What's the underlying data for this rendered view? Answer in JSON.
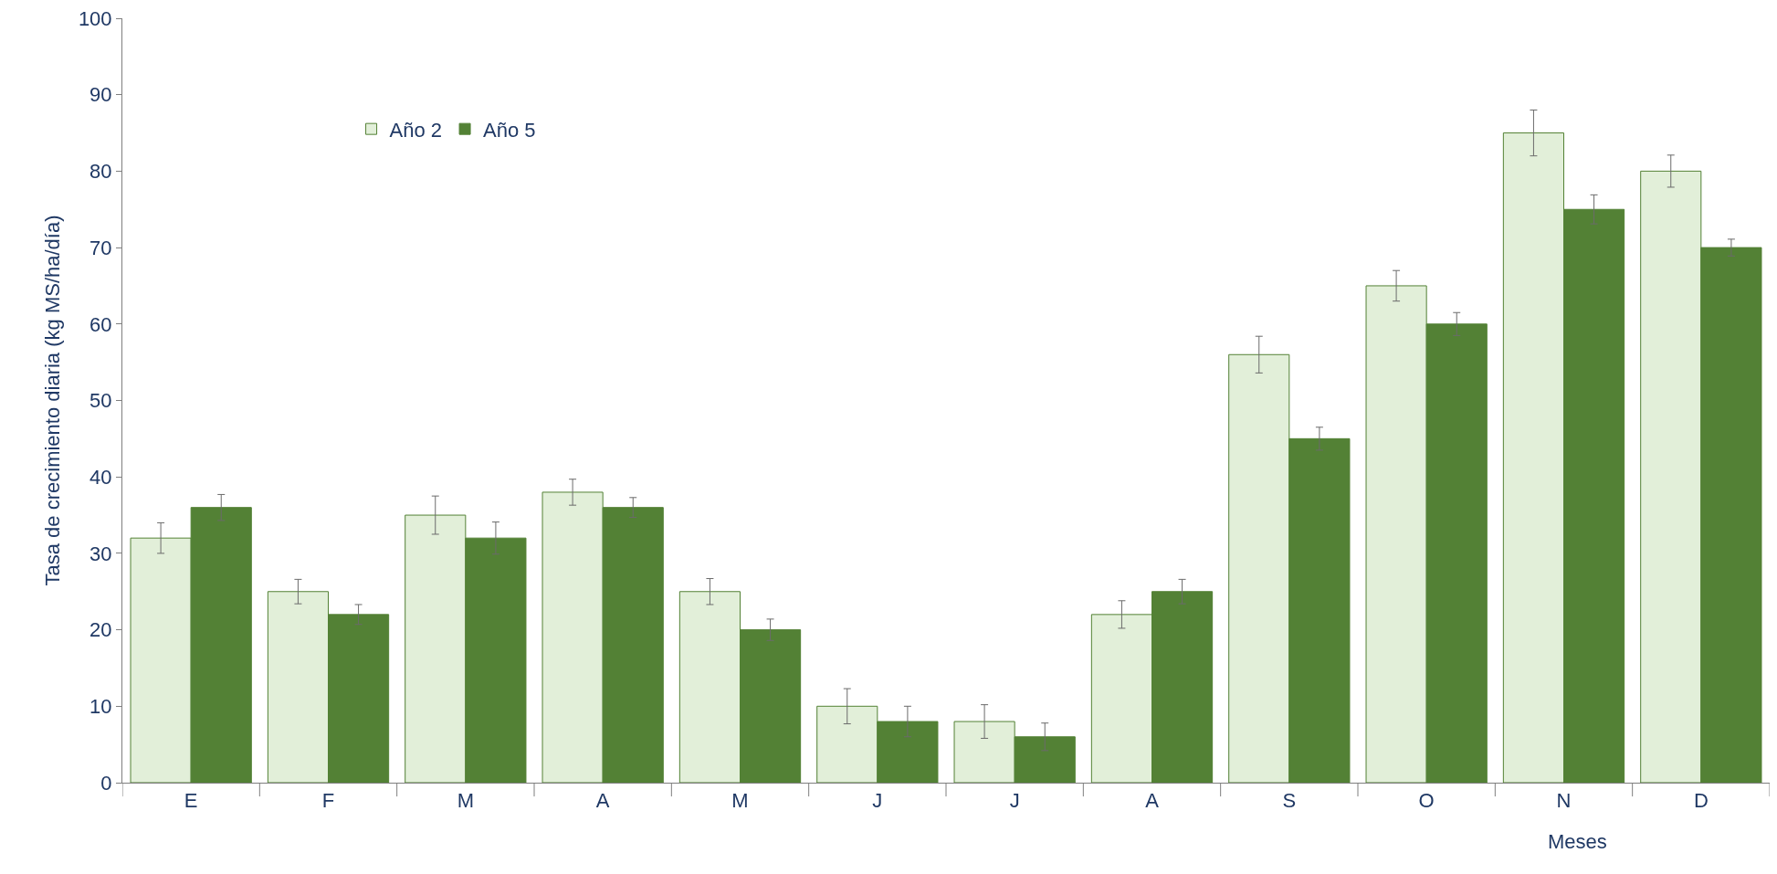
{
  "chart_data": {
    "type": "bar",
    "xlabel": "Meses",
    "ylabel": "Tasa de crecimiento diaria (kg MS/ha/día)",
    "categories": [
      "E",
      "F",
      "M",
      "A",
      "M",
      "J",
      "J",
      "A",
      "S",
      "O",
      "N",
      "D"
    ],
    "series": [
      {
        "name": "Año 2",
        "color": "#e2efd9",
        "values": [
          32,
          25,
          35,
          38,
          25,
          10,
          8,
          22,
          56,
          65,
          85,
          80
        ],
        "errors": [
          2,
          1.6,
          2.5,
          1.7,
          1.7,
          2.3,
          2.2,
          1.8,
          2.4,
          2,
          3,
          2.1
        ]
      },
      {
        "name": "Año 5",
        "color": "#538135",
        "values": [
          36,
          22,
          32,
          36,
          20,
          8,
          6,
          25,
          45,
          60,
          75,
          70
        ],
        "errors": [
          1.7,
          1.3,
          2.1,
          1.3,
          1.4,
          2,
          1.8,
          1.6,
          1.5,
          1.5,
          1.9,
          1.1
        ]
      }
    ],
    "ylim": [
      0,
      100
    ],
    "yticks": [
      0,
      10,
      20,
      30,
      40,
      50,
      60,
      70,
      80,
      90,
      100
    ],
    "grid": false,
    "legend": "top left"
  }
}
